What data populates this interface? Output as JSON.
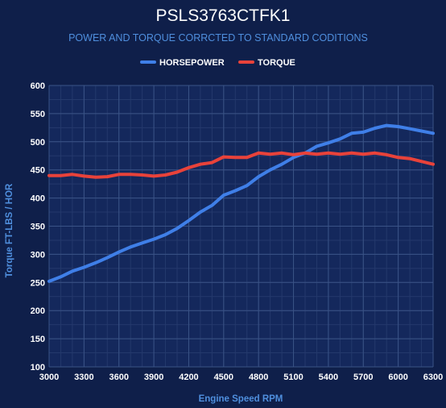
{
  "chart_data": {
    "type": "line",
    "title": "PSLS3763CTFK1",
    "subtitle": "POWER AND TORQUE CORRCTED TO STANDARD CODITIONS",
    "xlabel": "Engine Speed RPM",
    "ylabel": "Torque FT-LBS / HOR",
    "xlim": [
      3000,
      6300
    ],
    "ylim": [
      100,
      600
    ],
    "x_ticks": [
      3000,
      3300,
      3600,
      3900,
      4200,
      4500,
      4800,
      5100,
      5400,
      5700,
      6000,
      6300
    ],
    "y_ticks": [
      100,
      150,
      200,
      250,
      300,
      350,
      400,
      450,
      500,
      550,
      600
    ],
    "grid": true,
    "legend_position": "top",
    "series": [
      {
        "name": "HORSEPOWER",
        "color": "#3f7fe8",
        "points": [
          [
            3000,
            252
          ],
          [
            3100,
            260
          ],
          [
            3200,
            270
          ],
          [
            3300,
            277
          ],
          [
            3400,
            285
          ],
          [
            3500,
            294
          ],
          [
            3600,
            304
          ],
          [
            3700,
            313
          ],
          [
            3800,
            320
          ],
          [
            3900,
            327
          ],
          [
            4000,
            335
          ],
          [
            4100,
            346
          ],
          [
            4200,
            360
          ],
          [
            4300,
            375
          ],
          [
            4400,
            387
          ],
          [
            4500,
            405
          ],
          [
            4600,
            413
          ],
          [
            4700,
            422
          ],
          [
            4800,
            438
          ],
          [
            4900,
            450
          ],
          [
            5000,
            460
          ],
          [
            5100,
            472
          ],
          [
            5200,
            480
          ],
          [
            5300,
            492
          ],
          [
            5400,
            498
          ],
          [
            5500,
            505
          ],
          [
            5600,
            515
          ],
          [
            5700,
            517
          ],
          [
            5800,
            524
          ],
          [
            5900,
            529
          ],
          [
            6000,
            527
          ],
          [
            6100,
            523
          ],
          [
            6200,
            519
          ],
          [
            6300,
            515
          ]
        ]
      },
      {
        "name": "TORQUE",
        "color": "#e8423a",
        "points": [
          [
            3000,
            440
          ],
          [
            3100,
            440
          ],
          [
            3200,
            442
          ],
          [
            3300,
            439
          ],
          [
            3400,
            437
          ],
          [
            3500,
            438
          ],
          [
            3600,
            442
          ],
          [
            3700,
            442
          ],
          [
            3800,
            441
          ],
          [
            3900,
            439
          ],
          [
            4000,
            441
          ],
          [
            4100,
            446
          ],
          [
            4200,
            454
          ],
          [
            4300,
            460
          ],
          [
            4400,
            463
          ],
          [
            4500,
            473
          ],
          [
            4600,
            472
          ],
          [
            4700,
            472
          ],
          [
            4800,
            480
          ],
          [
            4900,
            478
          ],
          [
            5000,
            480
          ],
          [
            5100,
            477
          ],
          [
            5200,
            480
          ],
          [
            5300,
            478
          ],
          [
            5400,
            480
          ],
          [
            5500,
            478
          ],
          [
            5600,
            480
          ],
          [
            5700,
            478
          ],
          [
            5800,
            480
          ],
          [
            5900,
            477
          ],
          [
            6000,
            472
          ],
          [
            6100,
            470
          ],
          [
            6200,
            465
          ],
          [
            6300,
            460
          ]
        ]
      }
    ]
  },
  "colors": {
    "background": "#0f1f4a",
    "plot_background": "#14285c",
    "grid_major": "#3a5386",
    "grid_minor": "#24396c",
    "axis_label": "#4f8fde",
    "title": "#ffffff",
    "subtitle": "#4f8fde"
  }
}
